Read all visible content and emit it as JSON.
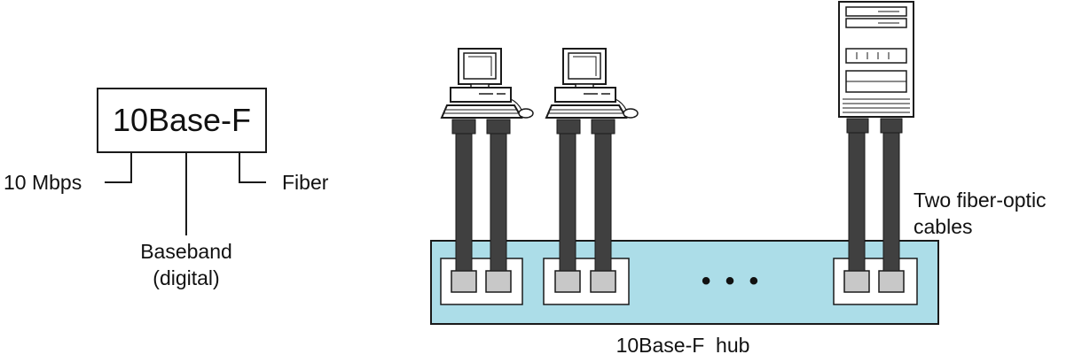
{
  "label_box": {
    "title": "10Base-F",
    "title_color": "#d6187c",
    "speed_label": "10 Mbps",
    "signal_label_line1": "Baseband",
    "signal_label_line2": "(digital)",
    "medium_label": "Fiber"
  },
  "cables_label_line1": "Two fiber-optic",
  "cables_label_line2": "cables",
  "hub_label": "10Base-F  hub",
  "hub_ellipsis": "• • •",
  "devices": [
    {
      "type": "computer-icon"
    },
    {
      "type": "computer-icon"
    },
    {
      "type": "server-icon"
    }
  ],
  "colors": {
    "hub_fill": "#acdde8",
    "cable_fill": "#404040",
    "port_fill": "#c8c8c8",
    "line": "#1a1a1a"
  }
}
